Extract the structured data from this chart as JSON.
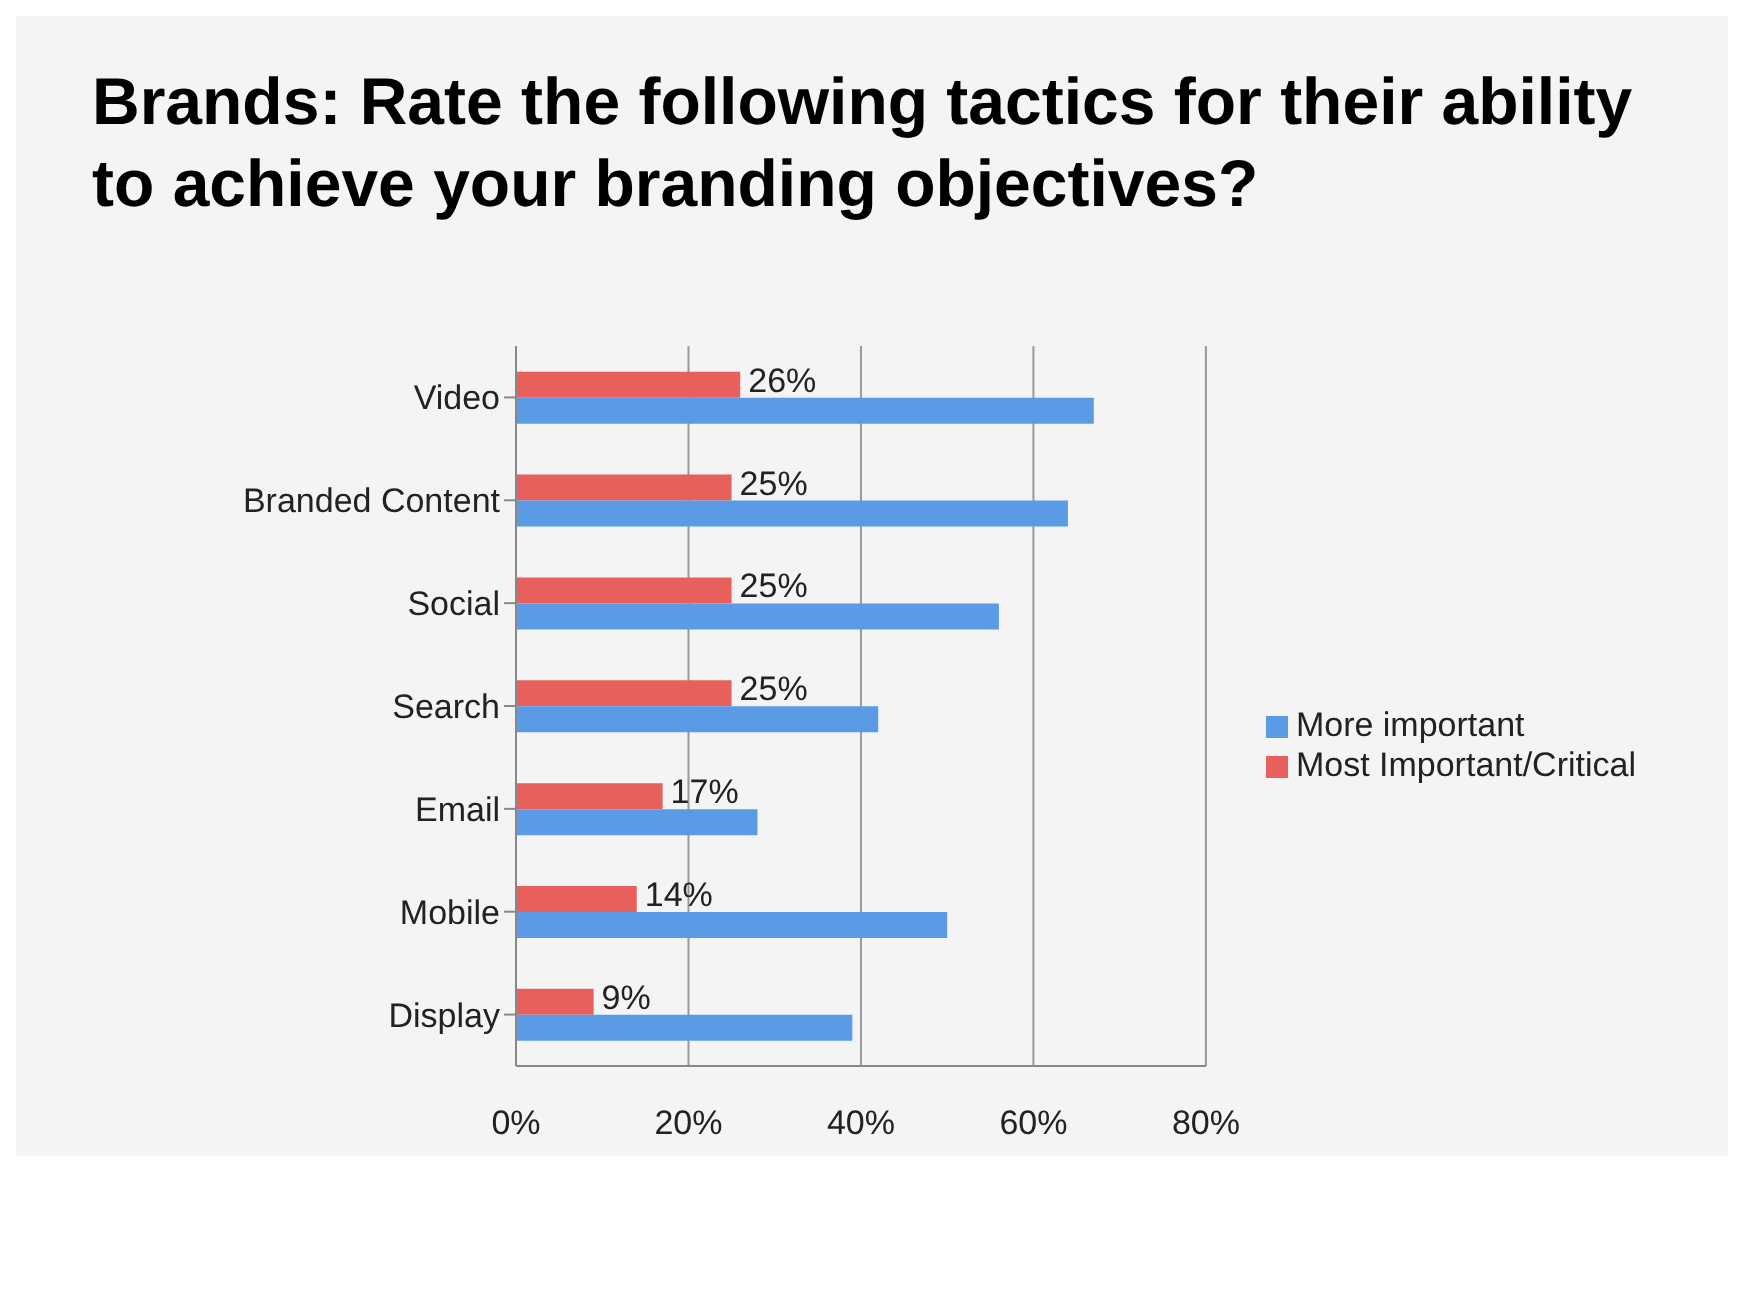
{
  "chart_data": {
    "type": "bar",
    "orientation": "horizontal",
    "title": "Brands: Rate the following tactics for their ability to achieve your branding objectives?",
    "categories": [
      "Video",
      "Branded Content",
      "Social",
      "Search",
      "Email",
      "Mobile",
      "Display"
    ],
    "series": [
      {
        "name": "Most Important/Critical",
        "color": "#e8605c",
        "values": [
          26,
          25,
          25,
          25,
          17,
          14,
          9
        ],
        "value_labels": [
          "26%",
          "25%",
          "25%",
          "25%",
          "17%",
          "14%",
          "9%"
        ]
      },
      {
        "name": "More important",
        "color": "#5b9be6",
        "values": [
          67,
          64,
          56,
          42,
          28,
          50,
          39
        ]
      }
    ],
    "xlim": [
      0,
      80
    ],
    "xticks": [
      {
        "value": 0,
        "label": "0%"
      },
      {
        "value": 20,
        "label": "20%"
      },
      {
        "value": 40,
        "label": "40%"
      },
      {
        "value": 60,
        "label": "60%"
      },
      {
        "value": 80,
        "label": "80%"
      }
    ],
    "grid": "x",
    "legend": "right"
  }
}
